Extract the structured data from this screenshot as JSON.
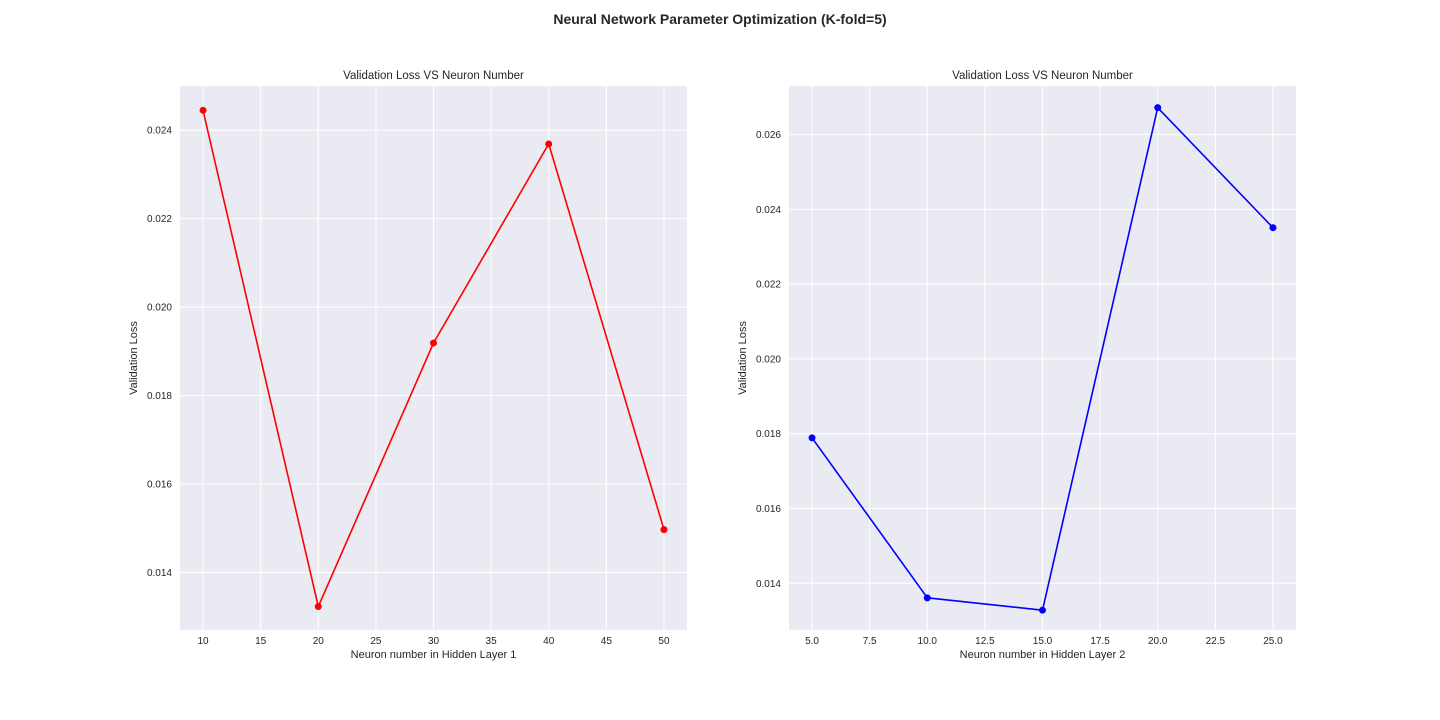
{
  "figure": {
    "title": "Neural Network Parameter Optimization (K-fold=5)"
  },
  "chart_data": [
    {
      "type": "line",
      "title": "Validation Loss VS Neuron Number",
      "xlabel": "Neuron number in Hidden Layer 1",
      "ylabel": "Validation Loss",
      "xlim": [
        8,
        52
      ],
      "ylim": [
        0.0127,
        0.025
      ],
      "xticks": [
        10,
        15,
        20,
        25,
        30,
        35,
        40,
        45,
        50
      ],
      "xtick_labels": [
        "10",
        "15",
        "20",
        "25",
        "30",
        "35",
        "40",
        "45",
        "50"
      ],
      "yticks": [
        0.014,
        0.016,
        0.018,
        0.02,
        0.022,
        0.024
      ],
      "ytick_labels": [
        "0.014",
        "0.016",
        "0.018",
        "0.020",
        "0.022",
        "0.024"
      ],
      "grid": true,
      "series": [
        {
          "color": "#FF0000",
          "marker": "circle",
          "x": [
            10,
            20,
            30,
            40,
            50
          ],
          "y": [
            0.02445,
            0.01323,
            0.01919,
            0.02369,
            0.01497
          ]
        }
      ]
    },
    {
      "type": "line",
      "title": "Validation Loss VS Neuron Number",
      "xlabel": "Neuron number in Hidden Layer 2",
      "ylabel": "Validation Loss",
      "xlim": [
        4.0,
        26.0
      ],
      "ylim": [
        0.01275,
        0.0273
      ],
      "xticks": [
        5.0,
        7.5,
        10.0,
        12.5,
        15.0,
        17.5,
        20.0,
        22.5,
        25.0
      ],
      "xtick_labels": [
        "5.0",
        "7.5",
        "10.0",
        "12.5",
        "15.0",
        "17.5",
        "20.0",
        "22.5",
        "25.0"
      ],
      "yticks": [
        0.014,
        0.016,
        0.018,
        0.02,
        0.022,
        0.024,
        0.026
      ],
      "ytick_labels": [
        "0.014",
        "0.016",
        "0.018",
        "0.020",
        "0.022",
        "0.024",
        "0.026"
      ],
      "grid": true,
      "series": [
        {
          "color": "#0000FF",
          "marker": "circle",
          "x": [
            5,
            10,
            15,
            20,
            25
          ],
          "y": [
            0.01789,
            0.01361,
            0.01328,
            0.02672,
            0.02351
          ]
        }
      ]
    }
  ]
}
